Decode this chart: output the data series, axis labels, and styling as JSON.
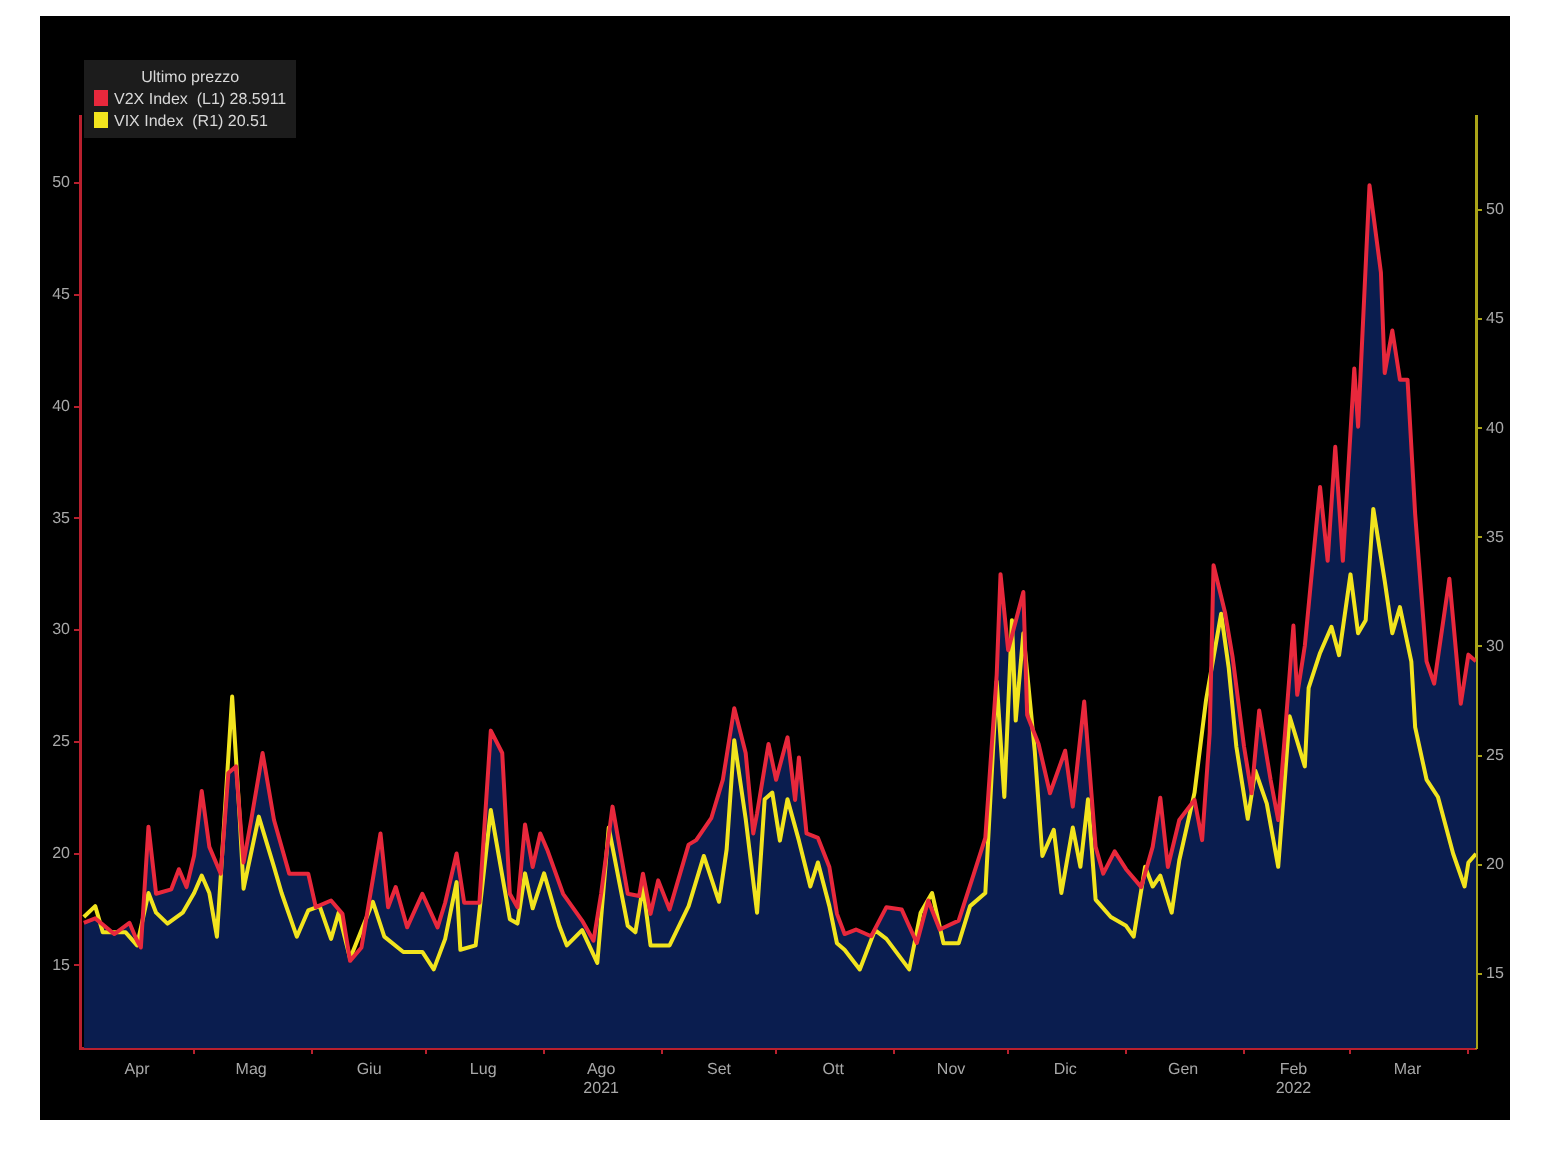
{
  "chart_data": {
    "type": "line",
    "legend_title": "Ultimo prezzo",
    "legend": "top left",
    "xlim": [
      "2021-04-01",
      "2022-04-03"
    ],
    "xticks": [
      {
        "value": "2021-04-16",
        "label": "Apr"
      },
      {
        "value": "2021-05-01",
        "label": null
      },
      {
        "value": "2021-05-16",
        "label": "Mag"
      },
      {
        "value": "2021-06-01",
        "label": null
      },
      {
        "value": "2021-06-16",
        "label": "Giu"
      },
      {
        "value": "2021-07-01",
        "label": null
      },
      {
        "value": "2021-07-16",
        "label": "Lug"
      },
      {
        "value": "2021-08-01",
        "label": null
      },
      {
        "value": "2021-08-16",
        "label": "Ago\n2021"
      },
      {
        "value": "2021-09-01",
        "label": null
      },
      {
        "value": "2021-09-16",
        "label": "Set"
      },
      {
        "value": "2021-10-01",
        "label": null
      },
      {
        "value": "2021-10-16",
        "label": "Ott"
      },
      {
        "value": "2021-11-01",
        "label": null
      },
      {
        "value": "2021-11-16",
        "label": "Nov"
      },
      {
        "value": "2021-12-01",
        "label": null
      },
      {
        "value": "2021-12-16",
        "label": "Dic"
      },
      {
        "value": "2022-01-01",
        "label": null
      },
      {
        "value": "2022-01-16",
        "label": "Gen"
      },
      {
        "value": "2022-02-01",
        "label": null
      },
      {
        "value": "2022-02-14",
        "label": "Feb\n2022"
      },
      {
        "value": "2022-03-01",
        "label": null
      },
      {
        "value": "2022-03-16",
        "label": "Mar"
      },
      {
        "value": "2022-04-01",
        "label": null
      }
    ],
    "ylim": [
      11.3,
      53
    ],
    "yticks": [
      15,
      20,
      25,
      30,
      35,
      40,
      45,
      50
    ],
    "y2lim": [
      11.6,
      54.3
    ],
    "y2ticks": [
      15,
      20,
      25,
      30,
      35,
      40,
      45,
      50
    ],
    "series": [
      {
        "type": "area",
        "axis": "y",
        "color": "#0a1d4f",
        "x": [
          "2021-04-02",
          "2021-04-05",
          "2021-04-10",
          "2021-04-14",
          "2021-04-16",
          "2021-04-17",
          "2021-04-19",
          "2021-04-21",
          "2021-04-25",
          "2021-04-27",
          "2021-04-29",
          "2021-05-01",
          "2021-05-03",
          "2021-05-05",
          "2021-05-08",
          "2021-05-10",
          "2021-05-12",
          "2021-05-14",
          "2021-05-16",
          "2021-05-19",
          "2021-05-22",
          "2021-05-26",
          "2021-05-31",
          "2021-06-02",
          "2021-06-06",
          "2021-06-09",
          "2021-06-11",
          "2021-06-14",
          "2021-06-19",
          "2021-06-21",
          "2021-06-23",
          "2021-06-26",
          "2021-06-30",
          "2021-07-04",
          "2021-07-06",
          "2021-07-09",
          "2021-07-11",
          "2021-07-15",
          "2021-07-18",
          "2021-07-21",
          "2021-07-23",
          "2021-07-25",
          "2021-07-27",
          "2021-07-29",
          "2021-07-31",
          "2021-08-02",
          "2021-08-06",
          "2021-08-11",
          "2021-08-14",
          "2021-08-16",
          "2021-08-19",
          "2021-08-23",
          "2021-08-26",
          "2021-08-27",
          "2021-08-29",
          "2021-08-31",
          "2021-09-03",
          "2021-09-08",
          "2021-09-10",
          "2021-09-14",
          "2021-09-17",
          "2021-09-20",
          "2021-09-23",
          "2021-09-25",
          "2021-09-26",
          "2021-09-29",
          "2021-10-01",
          "2021-10-04",
          "2021-10-06",
          "2021-10-07",
          "2021-10-09",
          "2021-10-12",
          "2021-10-15",
          "2021-10-17",
          "2021-10-19",
          "2021-10-22",
          "2021-10-26",
          "2021-10-30",
          "2021-11-03",
          "2021-11-07",
          "2021-11-10",
          "2021-11-13",
          "2021-11-18",
          "2021-11-22",
          "2021-11-25",
          "2021-11-28",
          "2021-11-29",
          "2021-12-01",
          "2021-12-05",
          "2021-12-06",
          "2021-12-09",
          "2021-12-12",
          "2021-12-16",
          "2021-12-18",
          "2021-12-21",
          "2021-12-24",
          "2021-12-26",
          "2021-12-29",
          "2022-01-01",
          "2022-01-05",
          "2022-01-08",
          "2022-01-10",
          "2022-01-12",
          "2022-01-15",
          "2022-01-19",
          "2022-01-21",
          "2022-01-23",
          "2022-01-24",
          "2022-01-27",
          "2022-01-29",
          "2022-02-01",
          "2022-02-03",
          "2022-02-05",
          "2022-02-08",
          "2022-02-10",
          "2022-02-14",
          "2022-02-15",
          "2022-02-17",
          "2022-02-21",
          "2022-02-23",
          "2022-02-25",
          "2022-02-27",
          "2022-03-02",
          "2022-03-03",
          "2022-03-06",
          "2022-03-09",
          "2022-03-10",
          "2022-03-12",
          "2022-03-14",
          "2022-03-16",
          "2022-03-18",
          "2022-03-21",
          "2022-03-23",
          "2022-03-27",
          "2022-03-30",
          "2022-04-01",
          "2022-04-03"
        ],
        "values": [
          16.9,
          17.1,
          16.4,
          16.9,
          16.1,
          15.8,
          21.2,
          18.2,
          18.4,
          19.3,
          18.5,
          19.9,
          22.8,
          20.3,
          19.1,
          23.6,
          23.9,
          19.6,
          21.5,
          24.5,
          21.5,
          19.1,
          19.1,
          17.6,
          17.9,
          17.3,
          15.2,
          15.8,
          20.9,
          17.6,
          18.5,
          16.7,
          18.2,
          16.7,
          17.8,
          20.0,
          17.8,
          17.8,
          25.5,
          24.5,
          18.2,
          17.6,
          21.3,
          19.4,
          20.9,
          20.1,
          18.2,
          17.0,
          16.1,
          18.2,
          22.1,
          18.2,
          18.1,
          19.1,
          17.3,
          18.8,
          17.5,
          20.4,
          20.6,
          21.6,
          23.3,
          26.5,
          24.5,
          20.9,
          21.8,
          24.9,
          23.3,
          25.2,
          22.4,
          24.3,
          20.9,
          20.7,
          19.4,
          17.3,
          16.4,
          16.6,
          16.3,
          17.6,
          17.5,
          16.0,
          17.9,
          16.6,
          17.0,
          19.1,
          20.7,
          28.0,
          32.5,
          29.1,
          31.7,
          26.2,
          24.9,
          22.7,
          24.6,
          22.1,
          26.8,
          20.3,
          19.1,
          20.1,
          19.3,
          18.5,
          20.3,
          22.5,
          19.4,
          21.5,
          22.4,
          20.6,
          25.4,
          32.9,
          30.8,
          28.8,
          24.8,
          22.7,
          26.4,
          23.3,
          21.5,
          30.2,
          27.1,
          29.3,
          36.4,
          33.1,
          38.2,
          33.1,
          41.7,
          39.1,
          49.9,
          46.0,
          41.5,
          43.4,
          41.2,
          41.2,
          35.2,
          28.6,
          27.6,
          32.3,
          26.7,
          28.9,
          28.6
        ]
      },
      {
        "name": "V2X Index  (L1) 28.5911",
        "axis": "y",
        "color": "#e8283c",
        "x": [
          "2021-04-02",
          "2021-04-05",
          "2021-04-10",
          "2021-04-14",
          "2021-04-16",
          "2021-04-17",
          "2021-04-19",
          "2021-04-21",
          "2021-04-25",
          "2021-04-27",
          "2021-04-29",
          "2021-05-01",
          "2021-05-03",
          "2021-05-05",
          "2021-05-08",
          "2021-05-10",
          "2021-05-12",
          "2021-05-14",
          "2021-05-16",
          "2021-05-19",
          "2021-05-22",
          "2021-05-26",
          "2021-05-31",
          "2021-06-02",
          "2021-06-06",
          "2021-06-09",
          "2021-06-11",
          "2021-06-14",
          "2021-06-19",
          "2021-06-21",
          "2021-06-23",
          "2021-06-26",
          "2021-06-30",
          "2021-07-04",
          "2021-07-06",
          "2021-07-09",
          "2021-07-11",
          "2021-07-15",
          "2021-07-18",
          "2021-07-21",
          "2021-07-23",
          "2021-07-25",
          "2021-07-27",
          "2021-07-29",
          "2021-07-31",
          "2021-08-02",
          "2021-08-06",
          "2021-08-11",
          "2021-08-14",
          "2021-08-16",
          "2021-08-19",
          "2021-08-23",
          "2021-08-26",
          "2021-08-27",
          "2021-08-29",
          "2021-08-31",
          "2021-09-03",
          "2021-09-08",
          "2021-09-10",
          "2021-09-14",
          "2021-09-17",
          "2021-09-20",
          "2021-09-23",
          "2021-09-25",
          "2021-09-26",
          "2021-09-29",
          "2021-10-01",
          "2021-10-04",
          "2021-10-06",
          "2021-10-07",
          "2021-10-09",
          "2021-10-12",
          "2021-10-15",
          "2021-10-17",
          "2021-10-19",
          "2021-10-22",
          "2021-10-26",
          "2021-10-30",
          "2021-11-03",
          "2021-11-07",
          "2021-11-10",
          "2021-11-13",
          "2021-11-18",
          "2021-11-22",
          "2021-11-25",
          "2021-11-28",
          "2021-11-29",
          "2021-12-01",
          "2021-12-05",
          "2021-12-06",
          "2021-12-09",
          "2021-12-12",
          "2021-12-16",
          "2021-12-18",
          "2021-12-21",
          "2021-12-24",
          "2021-12-26",
          "2021-12-29",
          "2022-01-01",
          "2022-01-05",
          "2022-01-08",
          "2022-01-10",
          "2022-01-12",
          "2022-01-15",
          "2022-01-19",
          "2022-01-21",
          "2022-01-23",
          "2022-01-24",
          "2022-01-27",
          "2022-01-29",
          "2022-02-01",
          "2022-02-03",
          "2022-02-05",
          "2022-02-08",
          "2022-02-10",
          "2022-02-14",
          "2022-02-15",
          "2022-02-17",
          "2022-02-21",
          "2022-02-23",
          "2022-02-25",
          "2022-02-27",
          "2022-03-02",
          "2022-03-03",
          "2022-03-06",
          "2022-03-09",
          "2022-03-10",
          "2022-03-12",
          "2022-03-14",
          "2022-03-16",
          "2022-03-18",
          "2022-03-21",
          "2022-03-23",
          "2022-03-27",
          "2022-03-30",
          "2022-04-01",
          "2022-04-03"
        ],
        "values": [
          16.9,
          17.1,
          16.4,
          16.9,
          16.1,
          15.8,
          21.2,
          18.2,
          18.4,
          19.3,
          18.5,
          19.9,
          22.8,
          20.3,
          19.1,
          23.6,
          23.9,
          19.6,
          21.5,
          24.5,
          21.5,
          19.1,
          19.1,
          17.6,
          17.9,
          17.3,
          15.2,
          15.8,
          20.9,
          17.6,
          18.5,
          16.7,
          18.2,
          16.7,
          17.8,
          20.0,
          17.8,
          17.8,
          25.5,
          24.5,
          18.2,
          17.6,
          21.3,
          19.4,
          20.9,
          20.1,
          18.2,
          17.0,
          16.1,
          18.2,
          22.1,
          18.2,
          18.1,
          19.1,
          17.3,
          18.8,
          17.5,
          20.4,
          20.6,
          21.6,
          23.3,
          26.5,
          24.5,
          20.9,
          21.8,
          24.9,
          23.3,
          25.2,
          22.4,
          24.3,
          20.9,
          20.7,
          19.4,
          17.3,
          16.4,
          16.6,
          16.3,
          17.6,
          17.5,
          16.0,
          17.9,
          16.6,
          17.0,
          19.1,
          20.7,
          28.0,
          32.5,
          29.1,
          31.7,
          26.2,
          24.9,
          22.7,
          24.6,
          22.1,
          26.8,
          20.3,
          19.1,
          20.1,
          19.3,
          18.5,
          20.3,
          22.5,
          19.4,
          21.5,
          22.4,
          20.6,
          25.4,
          32.9,
          30.8,
          28.8,
          24.8,
          22.7,
          26.4,
          23.3,
          21.5,
          30.2,
          27.1,
          29.3,
          36.4,
          33.1,
          38.2,
          33.1,
          41.7,
          39.1,
          49.9,
          46.0,
          41.5,
          43.4,
          41.2,
          41.2,
          35.2,
          28.6,
          27.6,
          32.3,
          26.7,
          28.9,
          28.6
        ]
      },
      {
        "name": "VIX Index  (R1) 20.51",
        "type": "line",
        "axis": "y2",
        "color": "#f2e41e",
        "x": [
          "2021-04-02",
          "2021-04-05",
          "2021-04-07",
          "2021-04-13",
          "2021-04-16",
          "2021-04-19",
          "2021-04-21",
          "2021-04-24",
          "2021-04-28",
          "2021-05-01",
          "2021-05-03",
          "2021-05-05",
          "2021-05-07",
          "2021-05-11",
          "2021-05-13",
          "2021-05-14",
          "2021-05-18",
          "2021-05-22",
          "2021-05-24",
          "2021-05-28",
          "2021-05-31",
          "2021-06-03",
          "2021-06-06",
          "2021-06-08",
          "2021-06-11",
          "2021-06-17",
          "2021-06-20",
          "2021-06-25",
          "2021-06-30",
          "2021-07-03",
          "2021-07-06",
          "2021-07-09",
          "2021-07-10",
          "2021-07-14",
          "2021-07-18",
          "2021-07-23",
          "2021-07-25",
          "2021-07-27",
          "2021-07-29",
          "2021-08-01",
          "2021-08-05",
          "2021-08-07",
          "2021-08-11",
          "2021-08-15",
          "2021-08-18",
          "2021-08-23",
          "2021-08-25",
          "2021-08-27",
          "2021-08-29",
          "2021-09-03",
          "2021-09-08",
          "2021-09-12",
          "2021-09-16",
          "2021-09-18",
          "2021-09-20",
          "2021-09-23",
          "2021-09-26",
          "2021-09-28",
          "2021-09-30",
          "2021-10-02",
          "2021-10-04",
          "2021-10-07",
          "2021-10-10",
          "2021-10-12",
          "2021-10-15",
          "2021-10-17",
          "2021-10-19",
          "2021-10-23",
          "2021-10-27",
          "2021-10-30",
          "2021-11-05",
          "2021-11-08",
          "2021-11-11",
          "2021-11-14",
          "2021-11-18",
          "2021-11-21",
          "2021-11-25",
          "2021-11-28",
          "2021-11-30",
          "2021-12-02",
          "2021-12-03",
          "2021-12-05",
          "2021-12-08",
          "2021-12-10",
          "2021-12-13",
          "2021-12-15",
          "2021-12-18",
          "2021-12-20",
          "2021-12-22",
          "2021-12-24",
          "2021-12-28",
          "2022-01-01",
          "2022-01-03",
          "2022-01-06",
          "2022-01-08",
          "2022-01-10",
          "2022-01-13",
          "2022-01-15",
          "2022-01-19",
          "2022-01-22",
          "2022-01-26",
          "2022-01-28",
          "2022-01-30",
          "2022-02-02",
          "2022-02-04",
          "2022-02-07",
          "2022-02-10",
          "2022-02-13",
          "2022-02-17",
          "2022-02-18",
          "2022-02-21",
          "2022-02-24",
          "2022-02-26",
          "2022-03-01",
          "2022-03-03",
          "2022-03-05",
          "2022-03-07",
          "2022-03-10",
          "2022-03-12",
          "2022-03-14",
          "2022-03-17",
          "2022-03-18",
          "2022-03-21",
          "2022-03-24",
          "2022-03-28",
          "2022-03-31",
          "2022-04-01",
          "2022-04-03"
        ],
        "values": [
          17.6,
          18.1,
          16.9,
          16.9,
          16.3,
          18.7,
          17.8,
          17.3,
          17.8,
          18.7,
          19.5,
          18.7,
          16.7,
          27.7,
          22.1,
          18.9,
          22.2,
          19.9,
          18.7,
          16.7,
          17.9,
          18.1,
          16.6,
          17.8,
          15.7,
          18.3,
          16.7,
          16.0,
          16.0,
          15.2,
          16.6,
          19.2,
          16.1,
          16.3,
          22.5,
          17.5,
          17.3,
          19.6,
          18.0,
          19.6,
          17.2,
          16.3,
          17.0,
          15.5,
          21.7,
          17.2,
          16.9,
          19.0,
          16.3,
          16.3,
          18.1,
          20.4,
          18.3,
          20.7,
          25.7,
          22.1,
          17.8,
          23.0,
          23.3,
          21.1,
          23.0,
          21.1,
          19.0,
          20.1,
          18.1,
          16.4,
          16.1,
          15.2,
          17.0,
          16.6,
          15.2,
          17.8,
          18.7,
          16.4,
          16.4,
          18.1,
          18.7,
          28.4,
          23.1,
          31.2,
          26.6,
          30.6,
          25.2,
          20.4,
          21.6,
          18.7,
          21.7,
          19.9,
          23.0,
          18.4,
          17.6,
          17.2,
          16.7,
          19.9,
          19.0,
          19.5,
          17.8,
          20.2,
          23.3,
          27.5,
          31.5,
          29.0,
          25.4,
          22.1,
          24.3,
          22.8,
          19.9,
          26.8,
          24.5,
          28.1,
          29.7,
          30.9,
          29.6,
          33.3,
          30.6,
          31.2,
          36.3,
          33.0,
          30.6,
          31.8,
          29.3,
          26.3,
          23.9,
          23.1,
          20.5,
          19.0,
          20.1,
          20.5
        ]
      }
    ]
  }
}
